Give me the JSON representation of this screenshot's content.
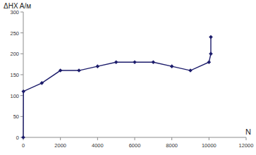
{
  "chart_data": {
    "type": "line",
    "y_label": "ΔHX A/м",
    "x_label": "N",
    "x": [
      0,
      10,
      1000,
      2000,
      3000,
      4000,
      5000,
      6000,
      7000,
      8000,
      9000,
      10000,
      10100,
      10100
    ],
    "series": [
      {
        "color": "#1c1c6b",
        "marker": "diamond",
        "line_style": "solid",
        "values": [
          0,
          110,
          130,
          160,
          160,
          170,
          180,
          180,
          180,
          170,
          160,
          180,
          200,
          240
        ]
      }
    ],
    "xlim": [
      0,
      12000
    ],
    "xticks": [
      0,
      2000,
      4000,
      6000,
      8000,
      10000,
      12000
    ],
    "ylim": [
      0,
      300
    ],
    "yticks": [
      0,
      50,
      100,
      150,
      200,
      250,
      300
    ],
    "grid": false
  }
}
